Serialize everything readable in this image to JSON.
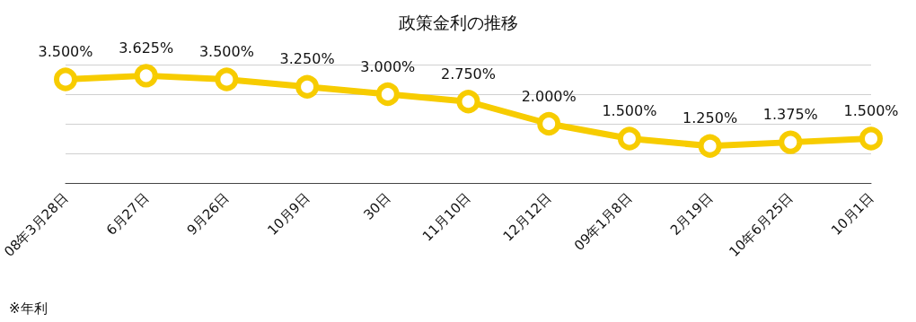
{
  "chart_data": {
    "type": "line",
    "title": "政策金利の推移",
    "categories": [
      "08年3月28日",
      "6月27日",
      "9月26日",
      "10月9日",
      "30日",
      "11月10日",
      "12月12日",
      "09年1月8日",
      "2月19日",
      "10年6月25日",
      "10月1日"
    ],
    "series": [
      {
        "color": "#f7cc00",
        "values": [
          3.5,
          3.625,
          3.5,
          3.25,
          3.0,
          2.75,
          2.0,
          1.5,
          1.25,
          1.375,
          1.5
        ],
        "value_labels": [
          "3.500%",
          "3.625%",
          "3.500%",
          "3.250%",
          "3.000%",
          "2.750%",
          "2.000%",
          "1.500%",
          "1.250%",
          "1.375%",
          "1.500%"
        ]
      }
    ],
    "ylim": [
      0,
      4
    ],
    "yticks": [
      {
        "value": 0,
        "label": null
      },
      {
        "value": 1,
        "label": null
      },
      {
        "value": 2,
        "label": null
      },
      {
        "value": 3,
        "label": null
      },
      {
        "value": 4,
        "label": null
      }
    ],
    "grid": "y",
    "tick_labels": "x",
    "marker": "circle",
    "line_style": "solid",
    "annotations": [
      "※年利"
    ]
  }
}
